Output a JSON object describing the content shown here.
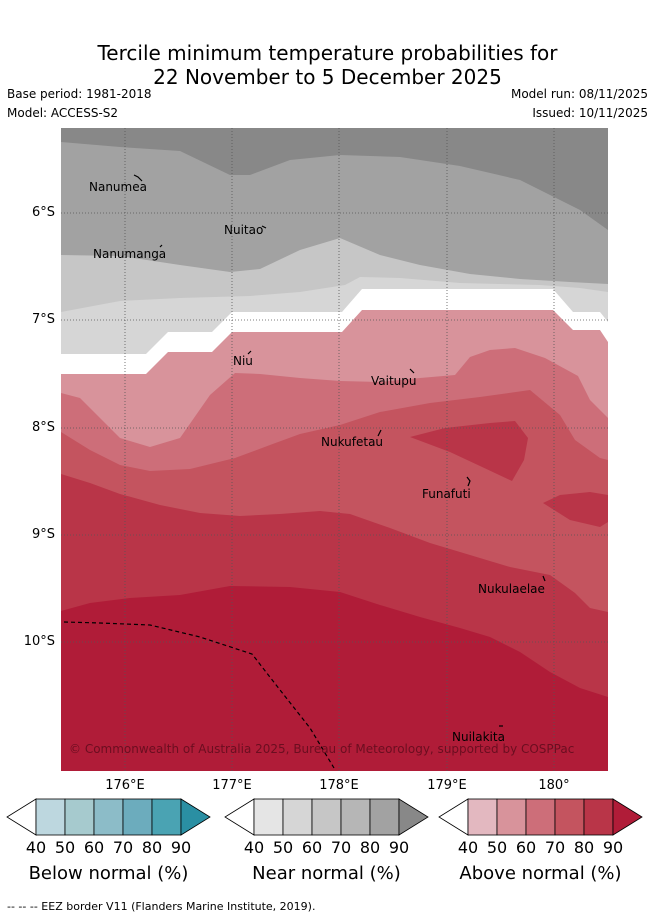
{
  "title_line1": "Tercile minimum temperature probabilities for",
  "title_line2": "22 November to 5 December 2025",
  "base_period": "Base period: 1981-2018",
  "model": "Model: ACCESS-S2",
  "model_run": "Model run: 08/11/2025",
  "issued": "Issued: 10/11/2025",
  "lat_labels": [
    "6°S",
    "7°S",
    "8°S",
    "9°S",
    "10°S"
  ],
  "lon_labels": [
    "176°E",
    "177°E",
    "178°E",
    "179°E",
    "180°"
  ],
  "places": {
    "nanumea": "Nanumea",
    "nuitao": "Nuitao",
    "nanumanga": "Nanumanga",
    "niu": "Niu",
    "vaitupu": "Vaitupu",
    "nukufetau": "Nukufetau",
    "funafuti": "Funafuti",
    "nukulaelae": "Nukulaelae",
    "nuilakita": "Nuilakita"
  },
  "copyright": "© Commonwealth of Australia 2025, Bureau of Meteorology, supported by COSPPac",
  "colorbars": {
    "ticks": [
      "40",
      "50",
      "60",
      "70",
      "80",
      "90"
    ],
    "below": {
      "label": "Below normal (%)",
      "colors": [
        "#ffffff",
        "#bdd7df",
        "#a6cace",
        "#8cbcc8",
        "#6cacbd",
        "#4aa3b3",
        "#2a8fa3"
      ]
    },
    "near": {
      "label": "Near normal (%)",
      "colors": [
        "#ffffff",
        "#e5e5e5",
        "#d6d6d6",
        "#c6c6c6",
        "#b6b6b6",
        "#a2a2a2",
        "#888888"
      ]
    },
    "above": {
      "label": "Above normal (%)",
      "colors": [
        "#ffffff",
        "#e3b8c0",
        "#d8939b",
        "#cd6e79",
        "#c4545f",
        "#b93548",
        "#b01c38"
      ]
    }
  },
  "eez_note": "--  --  -- EEZ border V11 (Flanders Marine Institute, 2019)."
}
